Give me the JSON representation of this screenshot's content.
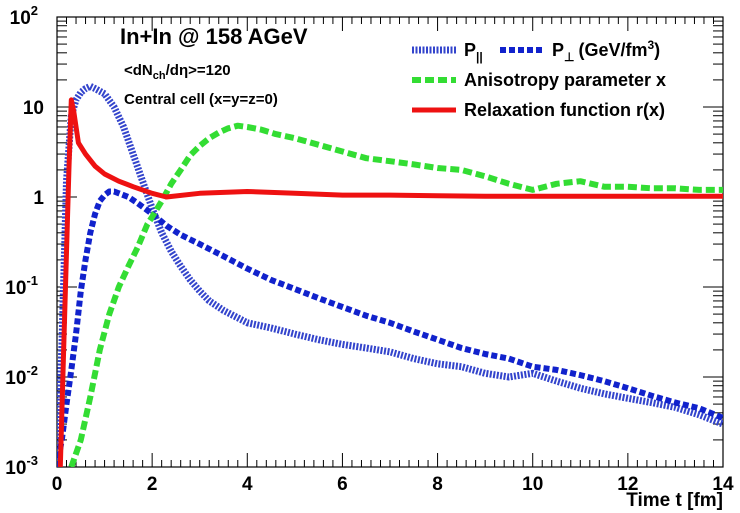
{
  "chart_data": {
    "type": "line",
    "title": "In+In @ 158 AGeV",
    "annotations": [
      "<dN",
      "ch",
      "/dη>=120",
      "Central cell (x=y=z=0)"
    ],
    "xlabel": "Time t [fm]",
    "ylabel": "",
    "xlim": [
      0,
      14
    ],
    "ylim": [
      0.001,
      100
    ],
    "y_scale": "log",
    "grid": false,
    "legend_position": "top-right",
    "x_ticks": [
      "0",
      "2",
      "4",
      "6",
      "8",
      "10",
      "12",
      "14"
    ],
    "y_ticks": [
      {
        "base": "10",
        "exp": "2",
        "value": 100
      },
      {
        "base": "10",
        "exp": "",
        "value": 10
      },
      {
        "base": "1",
        "exp": "",
        "value": 1
      },
      {
        "base": "10",
        "exp": "-1",
        "value": 0.1
      },
      {
        "base": "10",
        "exp": "-2",
        "value": 0.01
      },
      {
        "base": "10",
        "exp": "-3",
        "value": 0.001
      }
    ],
    "legend": {
      "p_par_label": "P",
      "p_par_sub": "||",
      "p_perp_label": "P",
      "p_perp_sub": "⊥",
      "units_pre": "(GeV/fm",
      "units_sup": "3",
      "units_post": ")",
      "aniso_label": "Anisotropy parameter x",
      "relax_label": "Relaxation function r(x)"
    },
    "series": [
      {
        "key": "p_parallel",
        "color": "#3344cc",
        "x": [
          0.0,
          0.1,
          0.2,
          0.3,
          0.4,
          0.5,
          0.6,
          0.7,
          0.8,
          1.0,
          1.2,
          1.4,
          1.6,
          1.8,
          2.0,
          2.2,
          2.4,
          2.6,
          2.8,
          3.0,
          3.2,
          3.5,
          4.0,
          4.5,
          5.0,
          5.5,
          6.0,
          6.5,
          7.0,
          7.5,
          8.0,
          8.5,
          9.0,
          9.5,
          10.0,
          10.5,
          11.0,
          11.5,
          12.0,
          12.5,
          13.0,
          13.5,
          14.0
        ],
        "y": [
          0.001,
          0.02,
          1.5,
          8,
          12,
          14.5,
          16,
          17,
          16,
          14,
          10,
          6,
          3,
          1.5,
          0.75,
          0.4,
          0.25,
          0.17,
          0.12,
          0.09,
          0.07,
          0.055,
          0.04,
          0.035,
          0.03,
          0.026,
          0.023,
          0.021,
          0.019,
          0.016,
          0.014,
          0.013,
          0.011,
          0.01,
          0.011,
          0.009,
          0.0075,
          0.0065,
          0.0058,
          0.0052,
          0.0046,
          0.0038,
          0.003
        ]
      },
      {
        "key": "p_perp",
        "color": "#1122cc",
        "x": [
          0.0,
          0.1,
          0.2,
          0.3,
          0.4,
          0.5,
          0.6,
          0.7,
          0.8,
          0.9,
          1.0,
          1.1,
          1.2,
          1.3,
          1.5,
          1.7,
          2.0,
          2.3,
          2.6,
          3.0,
          3.5,
          4.0,
          4.5,
          5.0,
          5.5,
          6.0,
          6.5,
          7.0,
          7.5,
          8.0,
          8.5,
          9.0,
          9.5,
          10.0,
          10.5,
          11.0,
          11.5,
          12.0,
          12.5,
          13.0,
          13.5,
          14.0
        ],
        "y": [
          0.001,
          0.002,
          0.005,
          0.012,
          0.03,
          0.09,
          0.2,
          0.4,
          0.65,
          0.9,
          1.05,
          1.15,
          1.15,
          1.1,
          1.0,
          0.85,
          0.65,
          0.48,
          0.38,
          0.3,
          0.22,
          0.16,
          0.12,
          0.095,
          0.075,
          0.06,
          0.048,
          0.04,
          0.032,
          0.026,
          0.021,
          0.018,
          0.016,
          0.013,
          0.012,
          0.0105,
          0.009,
          0.0075,
          0.0062,
          0.0052,
          0.0045,
          0.0035
        ]
      },
      {
        "key": "anisotropy",
        "color": "#33dd33",
        "x": [
          0.3,
          0.5,
          0.7,
          0.9,
          1.1,
          1.3,
          1.5,
          1.7,
          1.9,
          2.0,
          2.2,
          2.4,
          2.6,
          2.8,
          3.0,
          3.2,
          3.4,
          3.6,
          3.8,
          4.0,
          4.3,
          4.6,
          5.0,
          5.5,
          6.0,
          6.5,
          7.0,
          7.5,
          8.0,
          8.5,
          9.0,
          9.5,
          10.0,
          10.5,
          11.0,
          11.5,
          12.0,
          12.5,
          13.0,
          13.5,
          14.0
        ],
        "y": [
          0.001,
          0.002,
          0.006,
          0.02,
          0.05,
          0.1,
          0.17,
          0.28,
          0.5,
          0.6,
          0.9,
          1.4,
          2.0,
          2.9,
          3.7,
          4.5,
          5.2,
          5.8,
          6.2,
          6.0,
          5.6,
          5.0,
          4.5,
          3.8,
          3.2,
          2.7,
          2.5,
          2.3,
          2.1,
          2.0,
          1.7,
          1.4,
          1.2,
          1.4,
          1.5,
          1.3,
          1.3,
          1.25,
          1.25,
          1.2,
          1.2
        ]
      },
      {
        "key": "relaxation",
        "color": "#ee1111",
        "x": [
          0.07,
          0.15,
          0.25,
          0.3,
          0.35,
          0.45,
          0.6,
          0.8,
          1.0,
          1.3,
          1.6,
          2.0,
          2.3,
          3.0,
          4.0,
          5.0,
          6.0,
          7.0,
          8.0,
          9.0,
          10.0,
          11.0,
          12.0,
          13.0,
          14.0
        ],
        "y": [
          0.001,
          0.03,
          2.0,
          12.0,
          9.0,
          4.0,
          3.0,
          2.2,
          1.8,
          1.5,
          1.3,
          1.1,
          1.0,
          1.1,
          1.15,
          1.1,
          1.05,
          1.05,
          1.03,
          1.02,
          1.02,
          1.02,
          1.02,
          1.02,
          1.02
        ]
      }
    ]
  }
}
